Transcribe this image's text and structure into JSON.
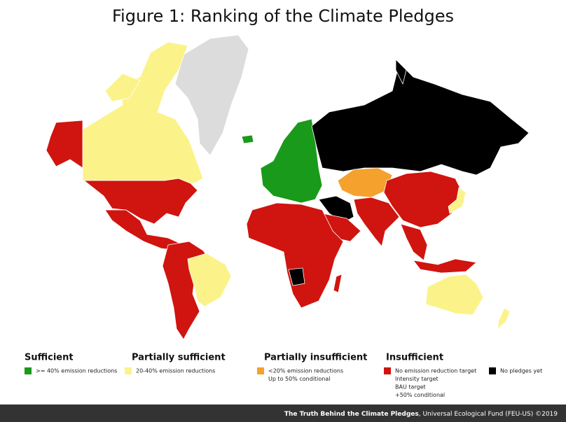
{
  "title": "Figure 1: Ranking of the Climate Pledges",
  "legend": [
    {
      "heading": "Sufficient",
      "items": [
        {
          "color": "#1a9a1a",
          "lines": [
            ">= 40% emission reductions"
          ]
        }
      ]
    },
    {
      "heading": "Partially sufficient",
      "items": [
        {
          "color": "#fbf38a",
          "lines": [
            "20-40% emission reductions"
          ]
        }
      ]
    },
    {
      "heading": "Partially insufficient",
      "items": [
        {
          "color": "#f4a12e",
          "lines": [
            "<20% emission reductions",
            "Up to 50% conditional"
          ]
        }
      ]
    },
    {
      "heading": "Insufficient",
      "items": [
        {
          "color": "#d0140f",
          "lines": [
            "No emission reduction target",
            "Intensity target",
            "BAU target",
            "+50% conditional"
          ]
        },
        {
          "color": "#000000",
          "lines": [
            "No pledges yet"
          ]
        }
      ]
    }
  ],
  "footer": {
    "source_title": "The Truth Behind the Climate Pledges",
    "source_rest": ", Universal Ecological Fund (FEU-US) ©2019"
  }
}
